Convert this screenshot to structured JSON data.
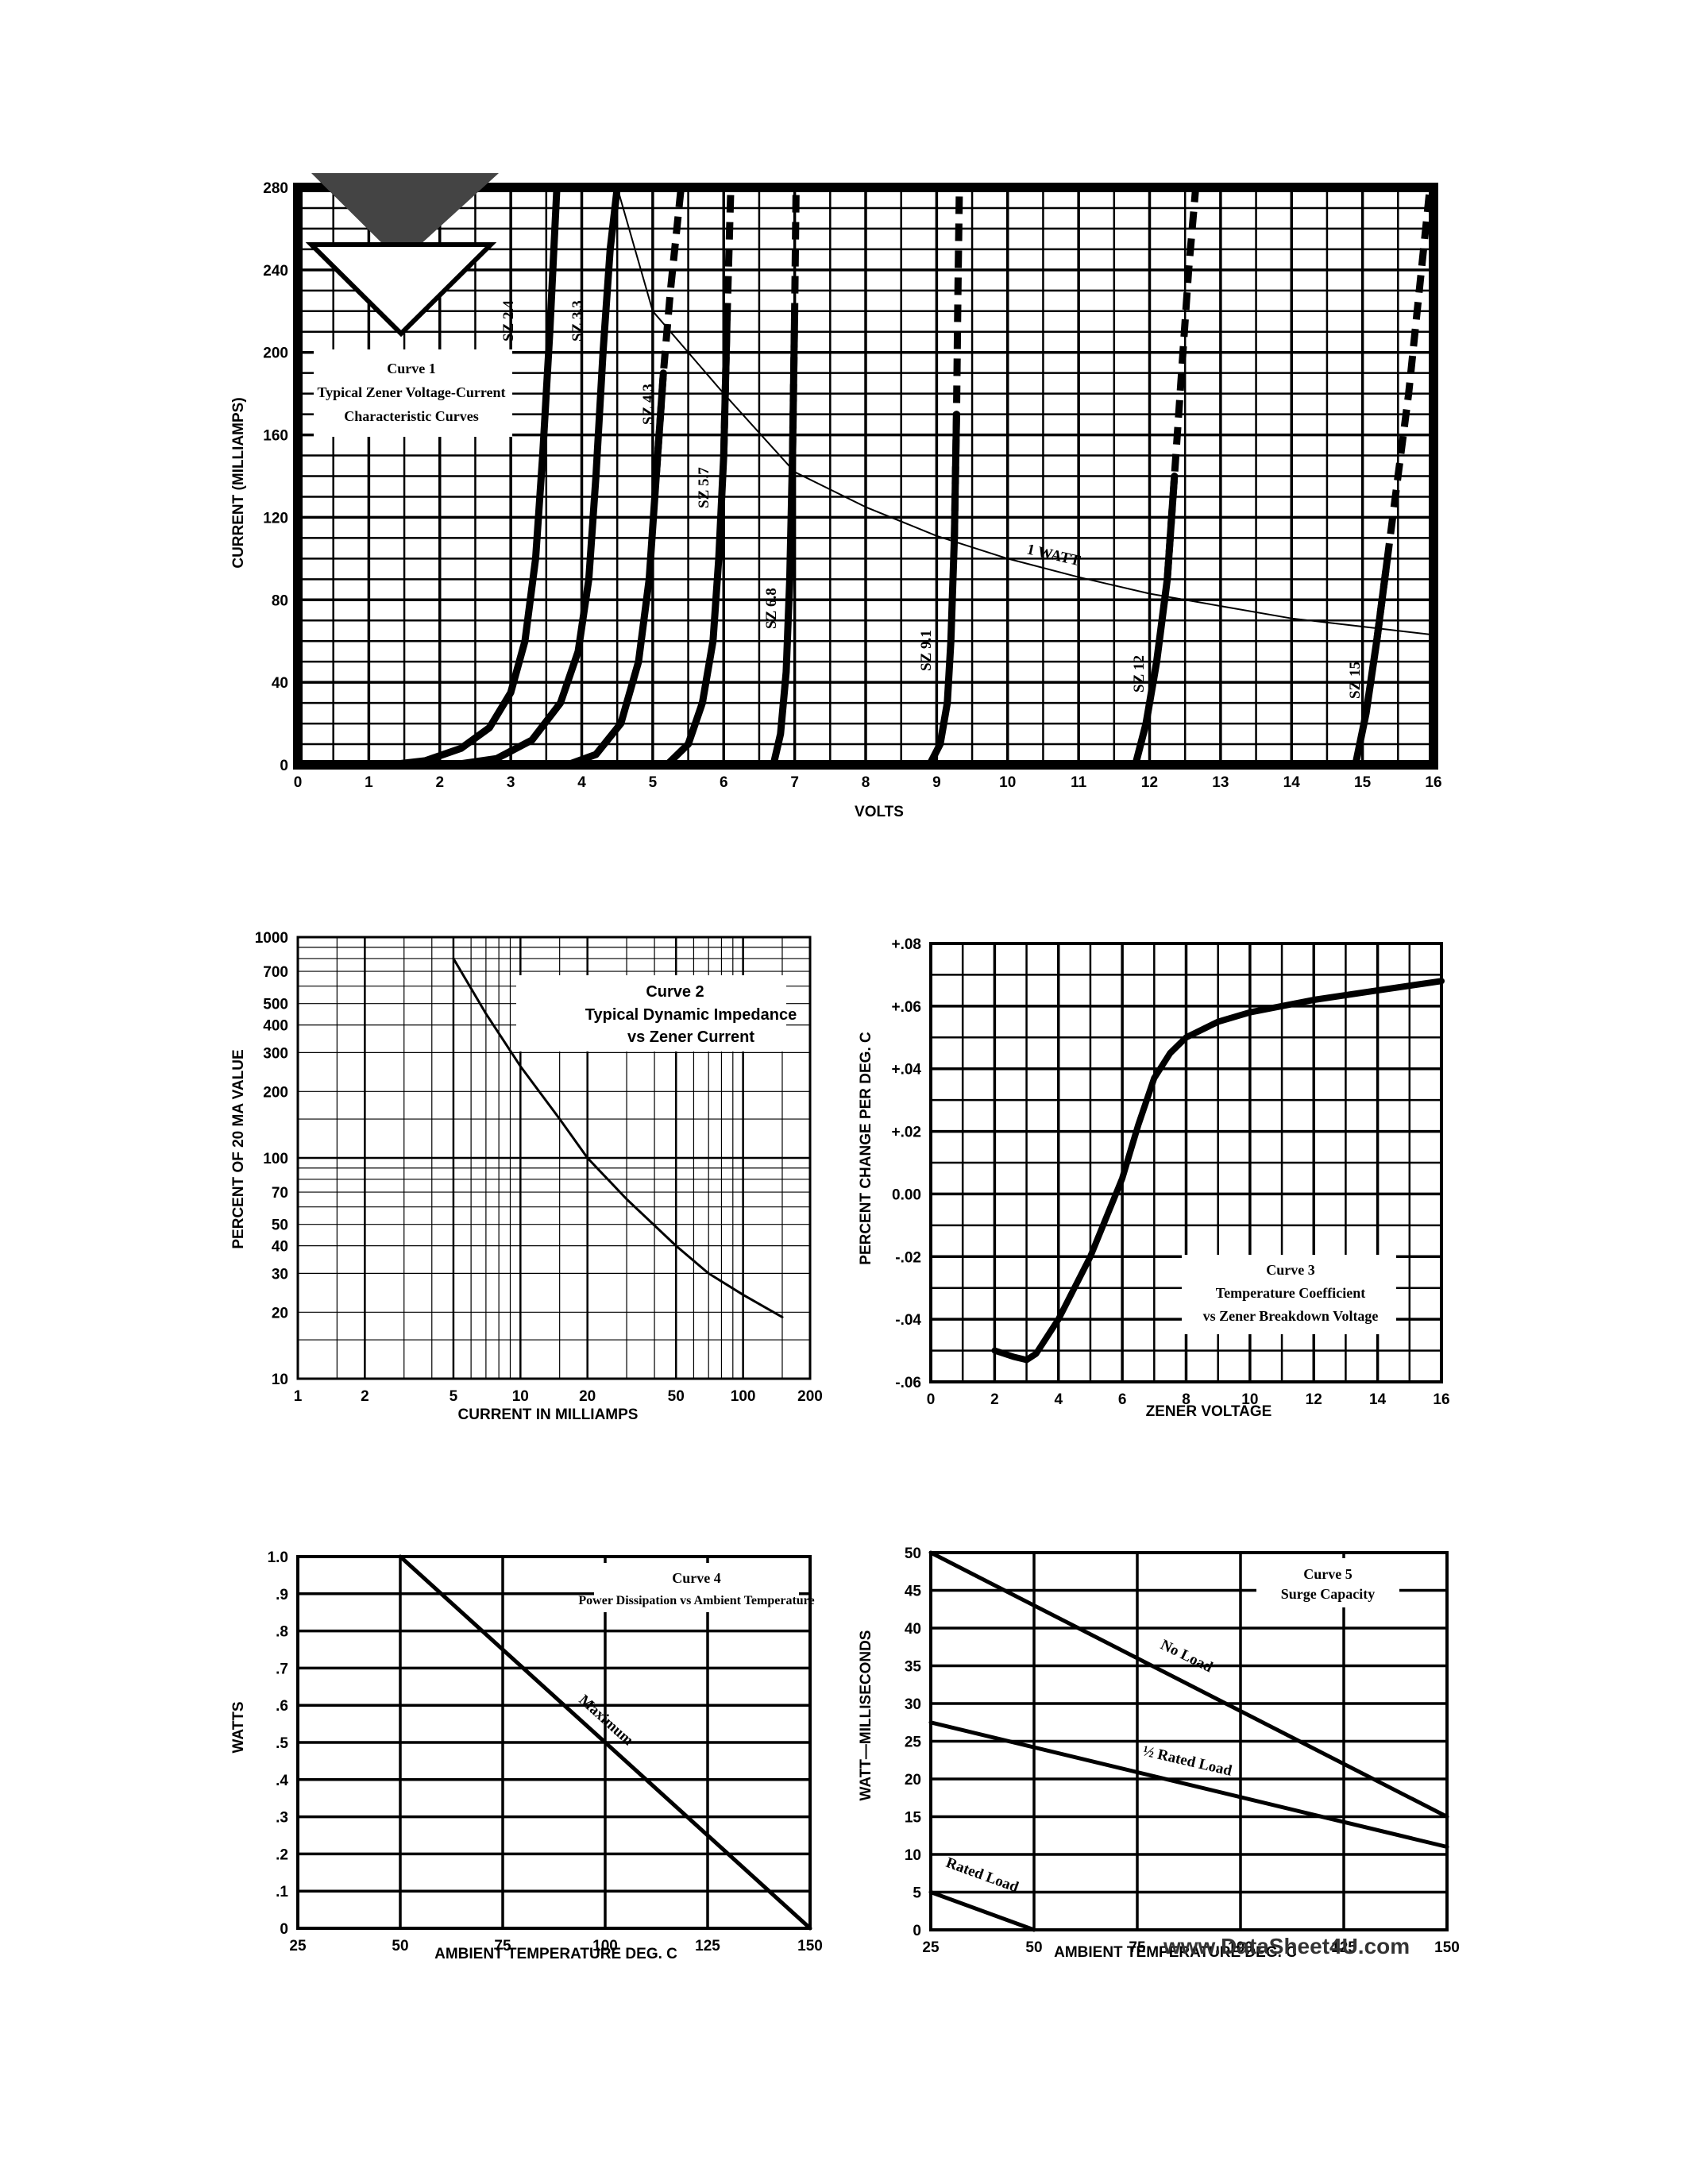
{
  "colors": {
    "ink": "#000000",
    "paper": "#ffffff"
  },
  "watermark": "www.DataSheet4U.com",
  "chart_data": [
    {
      "id": "curve1",
      "type": "line",
      "title_lines": [
        "Curve 1",
        "Typical Zener Voltage-Current",
        "Characteristic Curves"
      ],
      "xlabel": "VOLTS",
      "ylabel": "CURRENT (MILLIAMPS)",
      "xlim": [
        0,
        16
      ],
      "ylim": [
        0,
        280
      ],
      "xticks": [
        0,
        1,
        2,
        3,
        4,
        5,
        6,
        7,
        8,
        9,
        10,
        11,
        12,
        13,
        14,
        15,
        16
      ],
      "yticks": [
        0,
        40,
        80,
        120,
        160,
        200,
        240,
        280
      ],
      "series": [
        {
          "name": "SZ 2.4",
          "points": [
            [
              0,
              0
            ],
            [
              1.3,
              0
            ],
            [
              1.8,
              2
            ],
            [
              2.3,
              8
            ],
            [
              2.7,
              18
            ],
            [
              3.0,
              35
            ],
            [
              3.2,
              60
            ],
            [
              3.35,
              100
            ],
            [
              3.45,
              150
            ],
            [
              3.55,
              210
            ],
            [
              3.65,
              280
            ]
          ]
        },
        {
          "name": "SZ 3.3",
          "points": [
            [
              2.2,
              0
            ],
            [
              2.8,
              3
            ],
            [
              3.3,
              12
            ],
            [
              3.7,
              30
            ],
            [
              3.95,
              55
            ],
            [
              4.1,
              90
            ],
            [
              4.2,
              140
            ],
            [
              4.3,
              200
            ],
            [
              4.4,
              250
            ],
            [
              4.5,
              280
            ]
          ]
        },
        {
          "name": "SZ 4.3",
          "points": [
            [
              3.8,
              0
            ],
            [
              4.2,
              5
            ],
            [
              4.55,
              20
            ],
            [
              4.8,
              50
            ],
            [
              4.95,
              90
            ],
            [
              5.05,
              140
            ],
            [
              5.15,
              190
            ],
            [
              5.25,
              230
            ],
            [
              5.4,
              280
            ]
          ]
        },
        {
          "name": "SZ 5.7",
          "points": [
            [
              5.2,
              0
            ],
            [
              5.5,
              10
            ],
            [
              5.7,
              30
            ],
            [
              5.85,
              60
            ],
            [
              5.93,
              100
            ],
            [
              6.0,
              150
            ],
            [
              6.05,
              220
            ],
            [
              6.1,
              280
            ]
          ]
        },
        {
          "name": "SZ 6.8",
          "points": [
            [
              6.7,
              0
            ],
            [
              6.8,
              15
            ],
            [
              6.88,
              45
            ],
            [
              6.93,
              90
            ],
            [
              6.97,
              150
            ],
            [
              7.0,
              220
            ],
            [
              7.02,
              280
            ]
          ]
        },
        {
          "name": "SZ 9.1",
          "points": [
            [
              8.9,
              0
            ],
            [
              9.05,
              10
            ],
            [
              9.15,
              30
            ],
            [
              9.2,
              60
            ],
            [
              9.25,
              110
            ],
            [
              9.28,
              170
            ],
            [
              9.3,
              230
            ],
            [
              9.32,
              280
            ]
          ]
        },
        {
          "name": "SZ 12",
          "points": [
            [
              11.8,
              0
            ],
            [
              11.95,
              20
            ],
            [
              12.1,
              50
            ],
            [
              12.25,
              90
            ],
            [
              12.35,
              140
            ],
            [
              12.45,
              190
            ],
            [
              12.55,
              240
            ],
            [
              12.65,
              280
            ]
          ]
        },
        {
          "name": "SZ 15",
          "points": [
            [
              14.9,
              0
            ],
            [
              15.05,
              25
            ],
            [
              15.2,
              60
            ],
            [
              15.35,
              100
            ],
            [
              15.5,
              140
            ],
            [
              15.65,
              180
            ],
            [
              15.8,
              230
            ],
            [
              15.95,
              280
            ]
          ]
        },
        {
          "name": "1 WATT",
          "points": [
            [
              4.5,
              280
            ],
            [
              5,
              220
            ],
            [
              6,
              180
            ],
            [
              7,
              142
            ],
            [
              8,
              125
            ],
            [
              9,
              111
            ],
            [
              10,
              100
            ],
            [
              11,
              91
            ],
            [
              12,
              83
            ],
            [
              13,
              77
            ],
            [
              14,
              71
            ],
            [
              15,
              67
            ],
            [
              16,
              63
            ]
          ]
        }
      ]
    },
    {
      "id": "curve2",
      "type": "line",
      "title_lines": [
        "Curve 2",
        "Typical Dynamic Impedance",
        "vs Zener Current"
      ],
      "xlabel": "CURRENT IN MILLIAMPS",
      "ylabel": "PERCENT OF 20 MA VALUE",
      "xscale": "log",
      "yscale": "log",
      "xlim": [
        1,
        200
      ],
      "ylim": [
        10,
        1000
      ],
      "xticks": [
        1,
        2,
        5,
        10,
        20,
        50,
        100,
        200
      ],
      "yticks": [
        10,
        20,
        30,
        40,
        50,
        70,
        100,
        200,
        300,
        400,
        500,
        700,
        1000
      ],
      "series": [
        {
          "name": "",
          "x": [
            5,
            7,
            10,
            15,
            20,
            30,
            50,
            70,
            100,
            150
          ],
          "y": [
            800,
            450,
            260,
            150,
            100,
            65,
            40,
            30,
            24,
            19
          ]
        }
      ]
    },
    {
      "id": "curve3",
      "type": "line",
      "title_lines": [
        "Curve 3",
        "Temperature Coefficient",
        "vs Zener Breakdown Voltage"
      ],
      "xlabel": "ZENER VOLTAGE",
      "ylabel": "PERCENT CHANGE PER DEG. C",
      "xlim": [
        0,
        16
      ],
      "ylim": [
        -0.06,
        0.08
      ],
      "xticks": [
        0,
        2,
        4,
        6,
        8,
        10,
        12,
        14,
        16
      ],
      "yticks": [
        -0.06,
        -0.04,
        -0.02,
        0.0,
        0.02,
        0.04,
        0.06,
        0.08
      ],
      "ytick_labels": [
        "-.06",
        "-.04",
        "-.02",
        "0.00",
        "+.02",
        "+.04",
        "+.06",
        "+.08"
      ],
      "series": [
        {
          "name": "",
          "x": [
            2,
            2.6,
            3,
            3.3,
            4,
            5,
            6,
            6.5,
            7,
            7.5,
            8,
            9,
            10,
            12,
            14,
            16
          ],
          "y": [
            -0.05,
            -0.052,
            -0.053,
            -0.051,
            -0.04,
            -0.02,
            0.005,
            0.022,
            0.037,
            0.045,
            0.05,
            0.055,
            0.058,
            0.062,
            0.065,
            0.068
          ]
        }
      ]
    },
    {
      "id": "curve4",
      "type": "line",
      "title_lines": [
        "Curve 4",
        "Power Dissipation vs Ambient Temperature"
      ],
      "xlabel": "AMBIENT TEMPERATURE DEG. C",
      "ylabel": "WATTS",
      "xlim": [
        25,
        150
      ],
      "ylim": [
        0,
        1.0
      ],
      "xticks": [
        25,
        50,
        75,
        100,
        125,
        150
      ],
      "yticks": [
        0,
        0.1,
        0.2,
        0.3,
        0.4,
        0.5,
        0.6,
        0.7,
        0.8,
        0.9,
        1.0
      ],
      "ytick_labels": [
        "0",
        ".1",
        ".2",
        ".3",
        ".4",
        ".5",
        ".6",
        ".7",
        ".8",
        ".9",
        "1.0"
      ],
      "series": [
        {
          "name": "Maximum",
          "x": [
            50,
            150
          ],
          "y": [
            1.0,
            0.0
          ]
        }
      ]
    },
    {
      "id": "curve5",
      "type": "line",
      "title_lines": [
        "Curve 5",
        "Surge Capacity"
      ],
      "xlabel": "AMBIENT TEMPERATURE DEG. C",
      "ylabel": "WATT—MILLISECONDS",
      "xlim": [
        25,
        150
      ],
      "ylim": [
        0,
        50
      ],
      "xticks": [
        25,
        50,
        75,
        100,
        125,
        150
      ],
      "yticks": [
        0,
        5,
        10,
        15,
        20,
        25,
        30,
        35,
        40,
        45,
        50
      ],
      "series": [
        {
          "name": "No Load",
          "x": [
            25,
            150
          ],
          "y": [
            50,
            15
          ]
        },
        {
          "name": "½ Rated Load",
          "x": [
            25,
            150
          ],
          "y": [
            27.5,
            11
          ]
        },
        {
          "name": "Rated Load",
          "x": [
            25,
            50
          ],
          "y": [
            5,
            0
          ]
        }
      ]
    }
  ]
}
